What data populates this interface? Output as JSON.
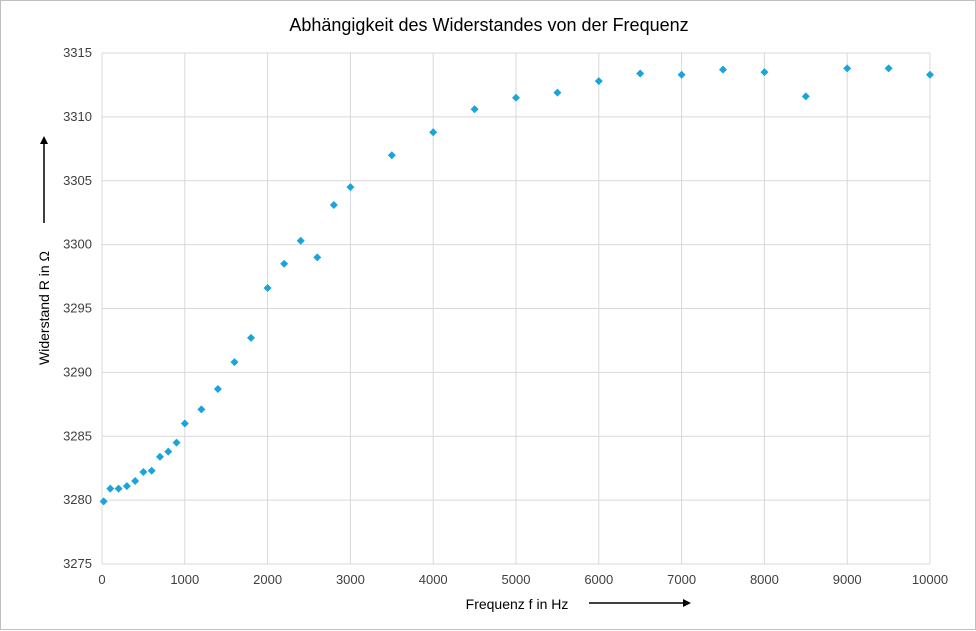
{
  "chart_data": {
    "type": "scatter",
    "title": "Abhängigkeit  des Widerstandes von der Frequenz",
    "xlabel": "Frequenz  f in Hz",
    "ylabel": "Widerstand R in Ω",
    "xlim": [
      0,
      10000
    ],
    "ylim": [
      3275,
      3315
    ],
    "xticks": [
      0,
      1000,
      2000,
      3000,
      4000,
      5000,
      6000,
      7000,
      8000,
      9000,
      10000
    ],
    "yticks": [
      3275,
      3280,
      3285,
      3290,
      3295,
      3300,
      3305,
      3310,
      3315
    ],
    "grid": true,
    "marker": "diamond",
    "marker_color": "#1aa4dc",
    "grid_color": "#d9d9d9",
    "series": [
      {
        "x": [
          20,
          100,
          200,
          300,
          400,
          500,
          600,
          700,
          800,
          900,
          1000,
          1200,
          1400,
          1600,
          1800,
          2000,
          2200,
          2400,
          2600,
          2800,
          3000,
          3500,
          4000,
          4500,
          5000,
          5500,
          6000,
          6500,
          7000,
          7500,
          8000,
          8500,
          9000,
          9500,
          10000
        ],
        "y": [
          3279.9,
          3280.9,
          3280.9,
          3281.1,
          3281.5,
          3282.2,
          3282.3,
          3283.4,
          3283.8,
          3284.5,
          3286.0,
          3287.1,
          3288.7,
          3290.8,
          3292.7,
          3296.6,
          3298.5,
          3300.3,
          3299.0,
          3303.1,
          3304.5,
          3307.0,
          3308.8,
          3310.6,
          3311.5,
          3311.9,
          3312.8,
          3313.4,
          3313.3,
          3313.7,
          3313.5,
          3311.6,
          3313.8,
          3313.8,
          3313.3
        ]
      }
    ]
  }
}
